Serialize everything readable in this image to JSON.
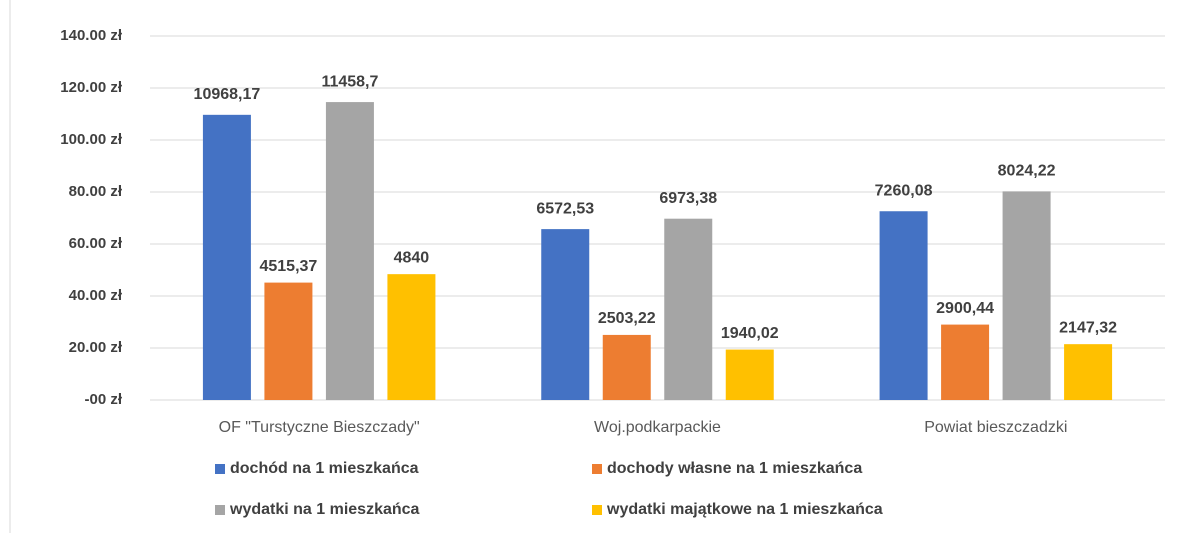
{
  "chart_data": {
    "type": "bar",
    "categories": [
      "OF \"Turstyczne Bieszczady\"",
      "Woj.podkarpackie",
      "Powiat bieszczadzki"
    ],
    "series": [
      {
        "name": "dochód na 1 mieszkańca",
        "color": "#4472c4",
        "values": [
          109.6817,
          65.7253,
          72.6008
        ],
        "value_labels": [
          "10968,17",
          "6572,53",
          "7260,08"
        ]
      },
      {
        "name": "dochody własne na 1 mieszkańca",
        "color": "#ed7d31",
        "values": [
          45.1537,
          25.0322,
          29.0044
        ],
        "value_labels": [
          "4515,37",
          "2503,22",
          "2900,44"
        ]
      },
      {
        "name": "wydatki na 1 mieszkańca",
        "color": "#a5a5a5",
        "values": [
          114.587,
          69.7338,
          80.2422
        ],
        "value_labels": [
          "11458,7",
          "6973,38",
          "8024,22"
        ]
      },
      {
        "name": "wydatki majątkowe na 1 mieszkańca",
        "color": "#ffc000",
        "values": [
          48.4,
          19.4002,
          21.4732
        ],
        "value_labels": [
          "4840",
          "1940,02",
          "2147,32"
        ]
      }
    ],
    "ylim": [
      0,
      140
    ],
    "yticks": [
      {
        "value": 0,
        "label": "-00 zł"
      },
      {
        "value": 20,
        "label": "20.00 zł"
      },
      {
        "value": 40,
        "label": "40.00 zł"
      },
      {
        "value": 60,
        "label": "60.00 zł"
      },
      {
        "value": 80,
        "label": "80.00 zł"
      },
      {
        "value": 100,
        "label": "100.00 zł"
      },
      {
        "value": 120,
        "label": "120.00 zł"
      },
      {
        "value": 140,
        "label": "140.00 zł"
      }
    ],
    "grid": true,
    "legend": "bottom"
  }
}
